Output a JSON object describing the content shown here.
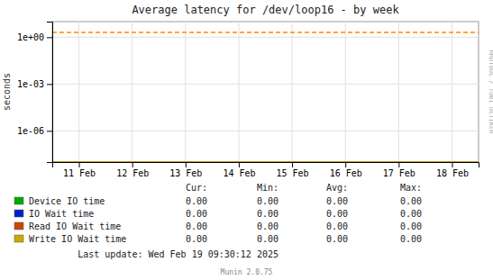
{
  "chart_data": {
    "type": "line",
    "title": "Average latency for /dev/loop16 - by week",
    "y_label": "seconds",
    "categories": [
      "11 Feb",
      "12 Feb",
      "13 Feb",
      "14 Feb",
      "15 Feb",
      "16 Feb",
      "17 Feb",
      "18 Feb"
    ],
    "log": "y",
    "ylim": [
      1e-08,
      10.0
    ],
    "yticks": [
      {
        "value": 1e-06,
        "label": "1e-06"
      },
      {
        "value": 0.001,
        "label": "1e-03"
      },
      {
        "value": 1,
        "label": "1e+00"
      }
    ],
    "grid": true,
    "reference_lines": [
      {
        "value": 2.0,
        "color": "#ff8800",
        "line_style": "dashed"
      },
      {
        "value": 1e-08,
        "color": "#aa8800",
        "line_style": "solid"
      }
    ],
    "stat_headers": [
      "Cur:",
      "Min:",
      "Avg:",
      "Max:"
    ],
    "series": [
      {
        "name": "Device IO time",
        "color": "#00aa00",
        "stats": [
          0,
          0,
          0,
          0
        ],
        "stat_labels": [
          "0.00",
          "0.00",
          "0.00",
          "0.00"
        ]
      },
      {
        "name": "IO Wait time",
        "color": "#0022cc",
        "stats": [
          0,
          0,
          0,
          0
        ],
        "stat_labels": [
          "0.00",
          "0.00",
          "0.00",
          "0.00"
        ]
      },
      {
        "name": "Read IO Wait time",
        "color": "#cc4400",
        "stats": [
          0,
          0,
          0,
          0
        ],
        "stat_labels": [
          "0.00",
          "0.00",
          "0.00",
          "0.00"
        ]
      },
      {
        "name": "Write IO Wait time",
        "color": "#ccaa00",
        "stats": [
          0,
          0,
          0,
          0
        ],
        "stat_labels": [
          "0.00",
          "0.00",
          "0.00",
          "0.00"
        ]
      }
    ],
    "annotations": [
      "Last update: Wed Feb 19 09:30:12 2025",
      "Munin 2.0.75",
      "RRDTOOL / TOBI OETIKER"
    ]
  }
}
